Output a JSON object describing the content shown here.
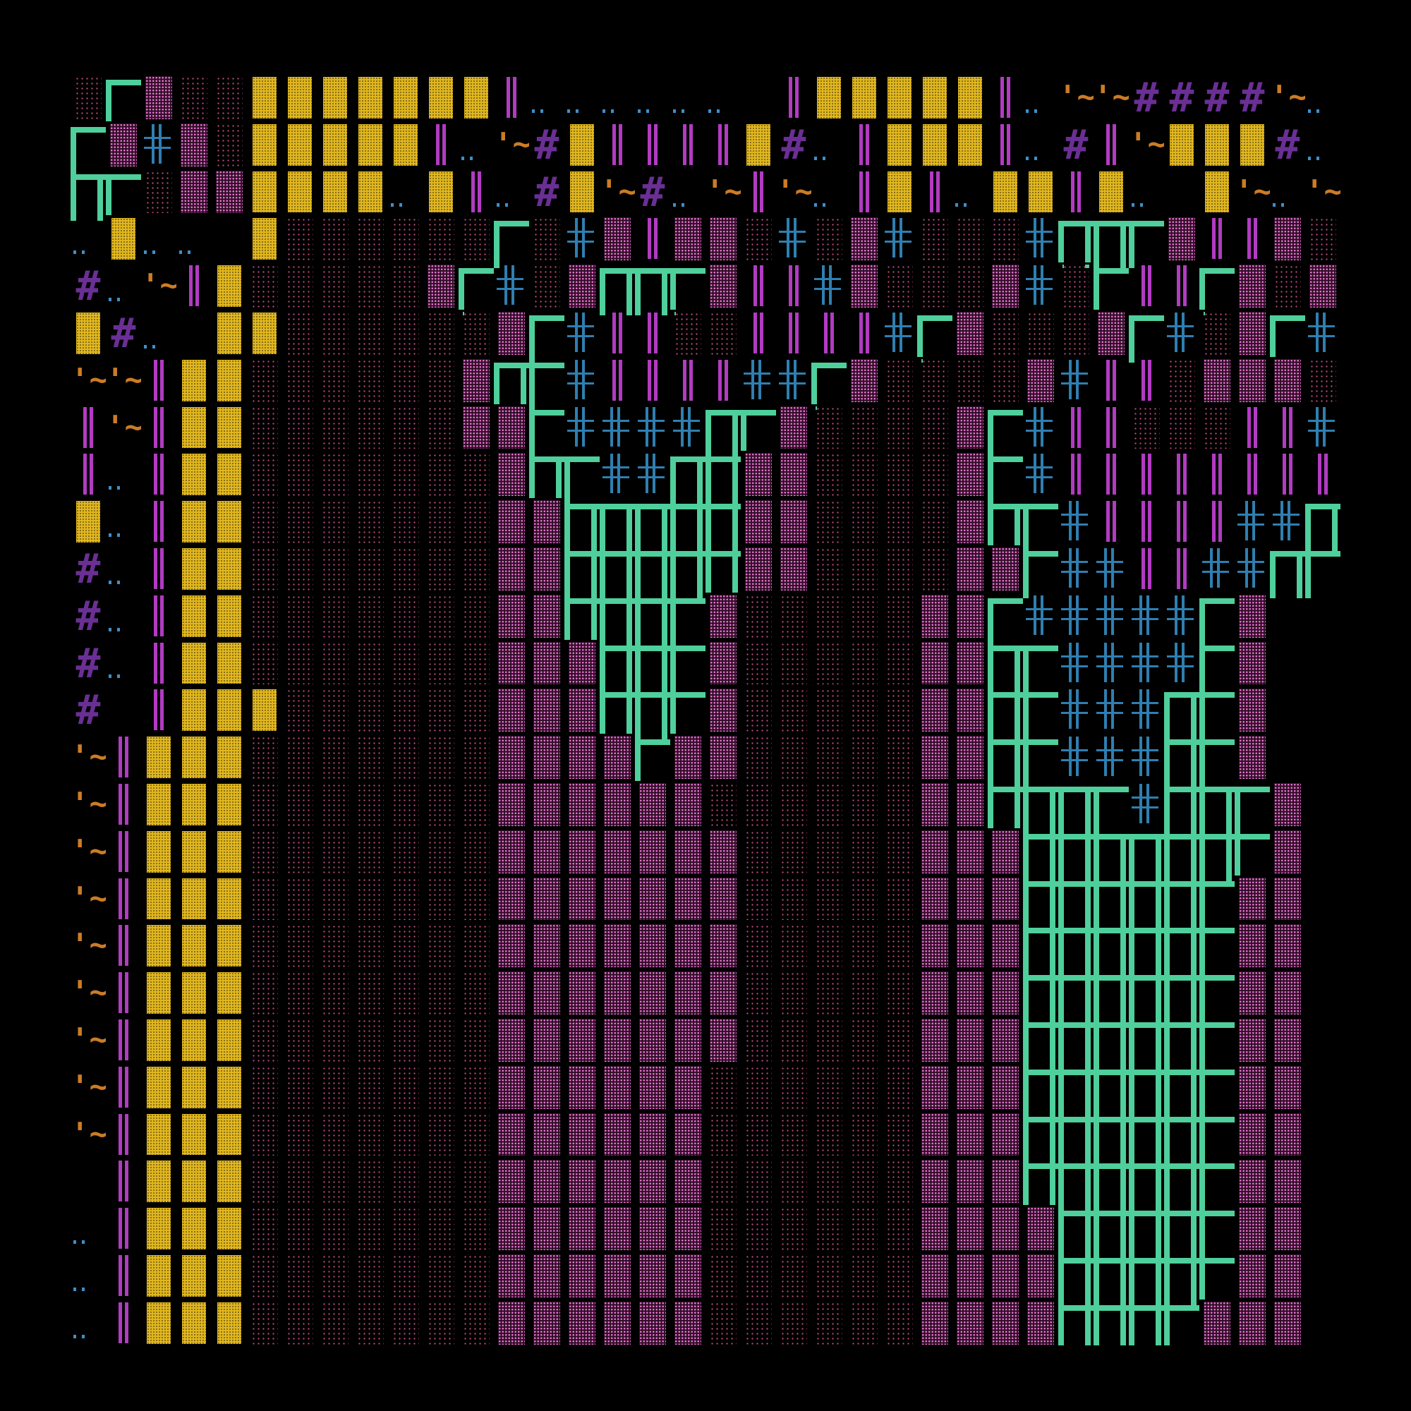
{
  "legend": {
    "X": "tile-block",
    ".": "tile-rubble-sparse",
    ":": "tile-rubble-dense",
    "A": "tile-arch-span",
    "a": "tile-arch-corner",
    "|": "tile-door-column",
    "+": "tile-lattice",
    "o": "tile-floor-dots",
    "#": "tile-hash",
    "~": "tile-tilde",
    " ": "tile-empty"
  },
  "glyphs": {
    "hash": "#",
    "tilde": "'~'"
  },
  "colors": {
    "background": "#000000",
    "block": "#e1b71f",
    "rubble_sparse": "#c24f7d",
    "rubble_dense": "#ee78d6",
    "arch": "#4fcf9c",
    "door_column": "#b23bc2",
    "lattice": "#2f7fb1",
    "floor_dots": "#3e8fc9",
    "hash": "#6a2f94",
    "tilde": "#cb7c25"
  },
  "map_rows": [
    ".a:..XXXXXXX|oooooo |XXXXX|o~~####~o",
    "a:+:.XXXXX|o~#X||||X#o|XXX|o#|~XXX#oX",
    "Aa.::XXXXoX|o#X~#o~|~o|X|oXX|Xo X~o~",
    "oXoo X......a.+:|::.+.:+...+AAa:||:.a++",
    "#o~|X.....:a+.:AAa:||+:...:+.a||a:.:+:",
    "X#o XX......:a+||..||||+a:...:a+.:a++a.|",
    "~~|XX......:Aa+||||++a:....:+||.:::.||+",
    "|~|XX......::a++++Aa:....:a+||...||+a",
    "|o|XX.......:Aa++AA::....:a+||||||||+A",
    "Xo|XX.......::AAAAA::....:Aa+||||++A",
    "#o|XX.......::AAAAA::....::a++||++Aa",
    "#o|XX.......::AAAa:.....::a+++++a:",
    "#o|XX.......:::AAa:.....::Aa++++a:",
    "# |XXX......:::AAa:.....::Aa+++Aa:",
    "~|XXX.......::::a::.....::Aa+++Aa:",
    "~|XXX.......::::::......::AAAa+AAa:",
    "~|XXX.......:::::::.....:::AAAAAAa:",
    "~|XXX.......:::::::.....:::AAAAAa::",
    "~|XXX.......:::::::.....:::AAAAAa::",
    "~|XXX.......:::::::.....:::AAAAAa::",
    "~|XXX.......:::::::.....:::AAAAAa::",
    "~|XXX.......::::::......:::AAAAAa::",
    "~|XXX.......::::::......:::AAAAAa::",
    " |XXX.......::::::......:::AAAAAa::",
    "o|XXX.......::::::......::::AAAAa::",
    "o|XXX.......::::::......::::AAAAa::",
    "o|XXX.......::::::......::::AAAa:::"
  ]
}
